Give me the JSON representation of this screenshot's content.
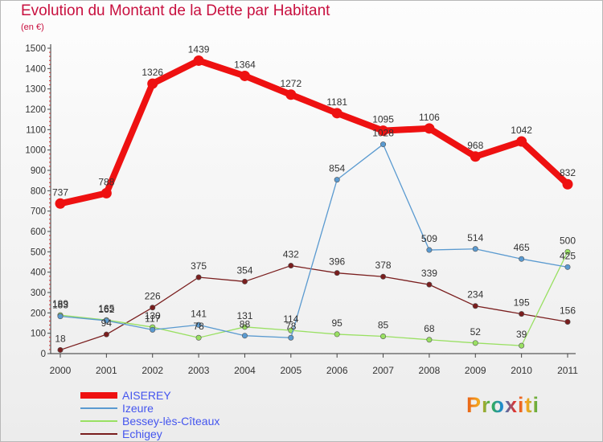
{
  "title": "Evolution du Montant de la Dette par Habitant",
  "subtitle": "(en €)",
  "logo_text": "Proxiti",
  "chart_data": {
    "type": "line",
    "x": [
      "2000",
      "2001",
      "2002",
      "2003",
      "2004",
      "2005",
      "2006",
      "2007",
      "2008",
      "2009",
      "2010",
      "2011"
    ],
    "ylim": [
      0,
      1500
    ],
    "yticks": [
      0,
      100,
      200,
      300,
      400,
      500,
      600,
      700,
      800,
      900,
      1000,
      1100,
      1200,
      1300,
      1400,
      1500
    ],
    "grid": false,
    "legend": "bottom-left",
    "series": [
      {
        "name": "AISEREY",
        "color": "#ee1111",
        "values": [
          737,
          788,
          1326,
          1439,
          1364,
          1272,
          1181,
          1095,
          1106,
          968,
          1042,
          832
        ],
        "labels": [
          "737",
          "788",
          "1326",
          "1439",
          "1364",
          "1272",
          "1181",
          "1095",
          "1106",
          "968",
          "1042",
          "832"
        ]
      },
      {
        "name": "Izeure",
        "color": "#5a9ad0",
        "values": [
          183,
          162,
          117,
          141,
          88,
          78,
          854,
          1028,
          509,
          514,
          465,
          425
        ],
        "labels": [
          "183",
          "162",
          "117",
          "141",
          "88",
          "78",
          "854",
          "1028",
          "509",
          "514",
          "465",
          "425"
        ]
      },
      {
        "name": "Bessey-lès-Cîteaux",
        "color": "#99e062",
        "values": [
          189,
          165,
          130,
          78,
          131,
          114,
          95,
          85,
          68,
          52,
          39,
          500
        ],
        "labels": [
          "189",
          "165",
          "130",
          "78",
          "131",
          "114",
          "95",
          "85",
          "68",
          "52",
          "39",
          "500"
        ]
      },
      {
        "name": "Echigey",
        "color": "#7a1e1e",
        "values": [
          18,
          94,
          226,
          375,
          354,
          432,
          396,
          378,
          339,
          234,
          195,
          156
        ],
        "labels": [
          "18",
          "94",
          "226",
          "375",
          "354",
          "432",
          "396",
          "378",
          "339",
          "234",
          "195",
          "156"
        ]
      }
    ]
  }
}
